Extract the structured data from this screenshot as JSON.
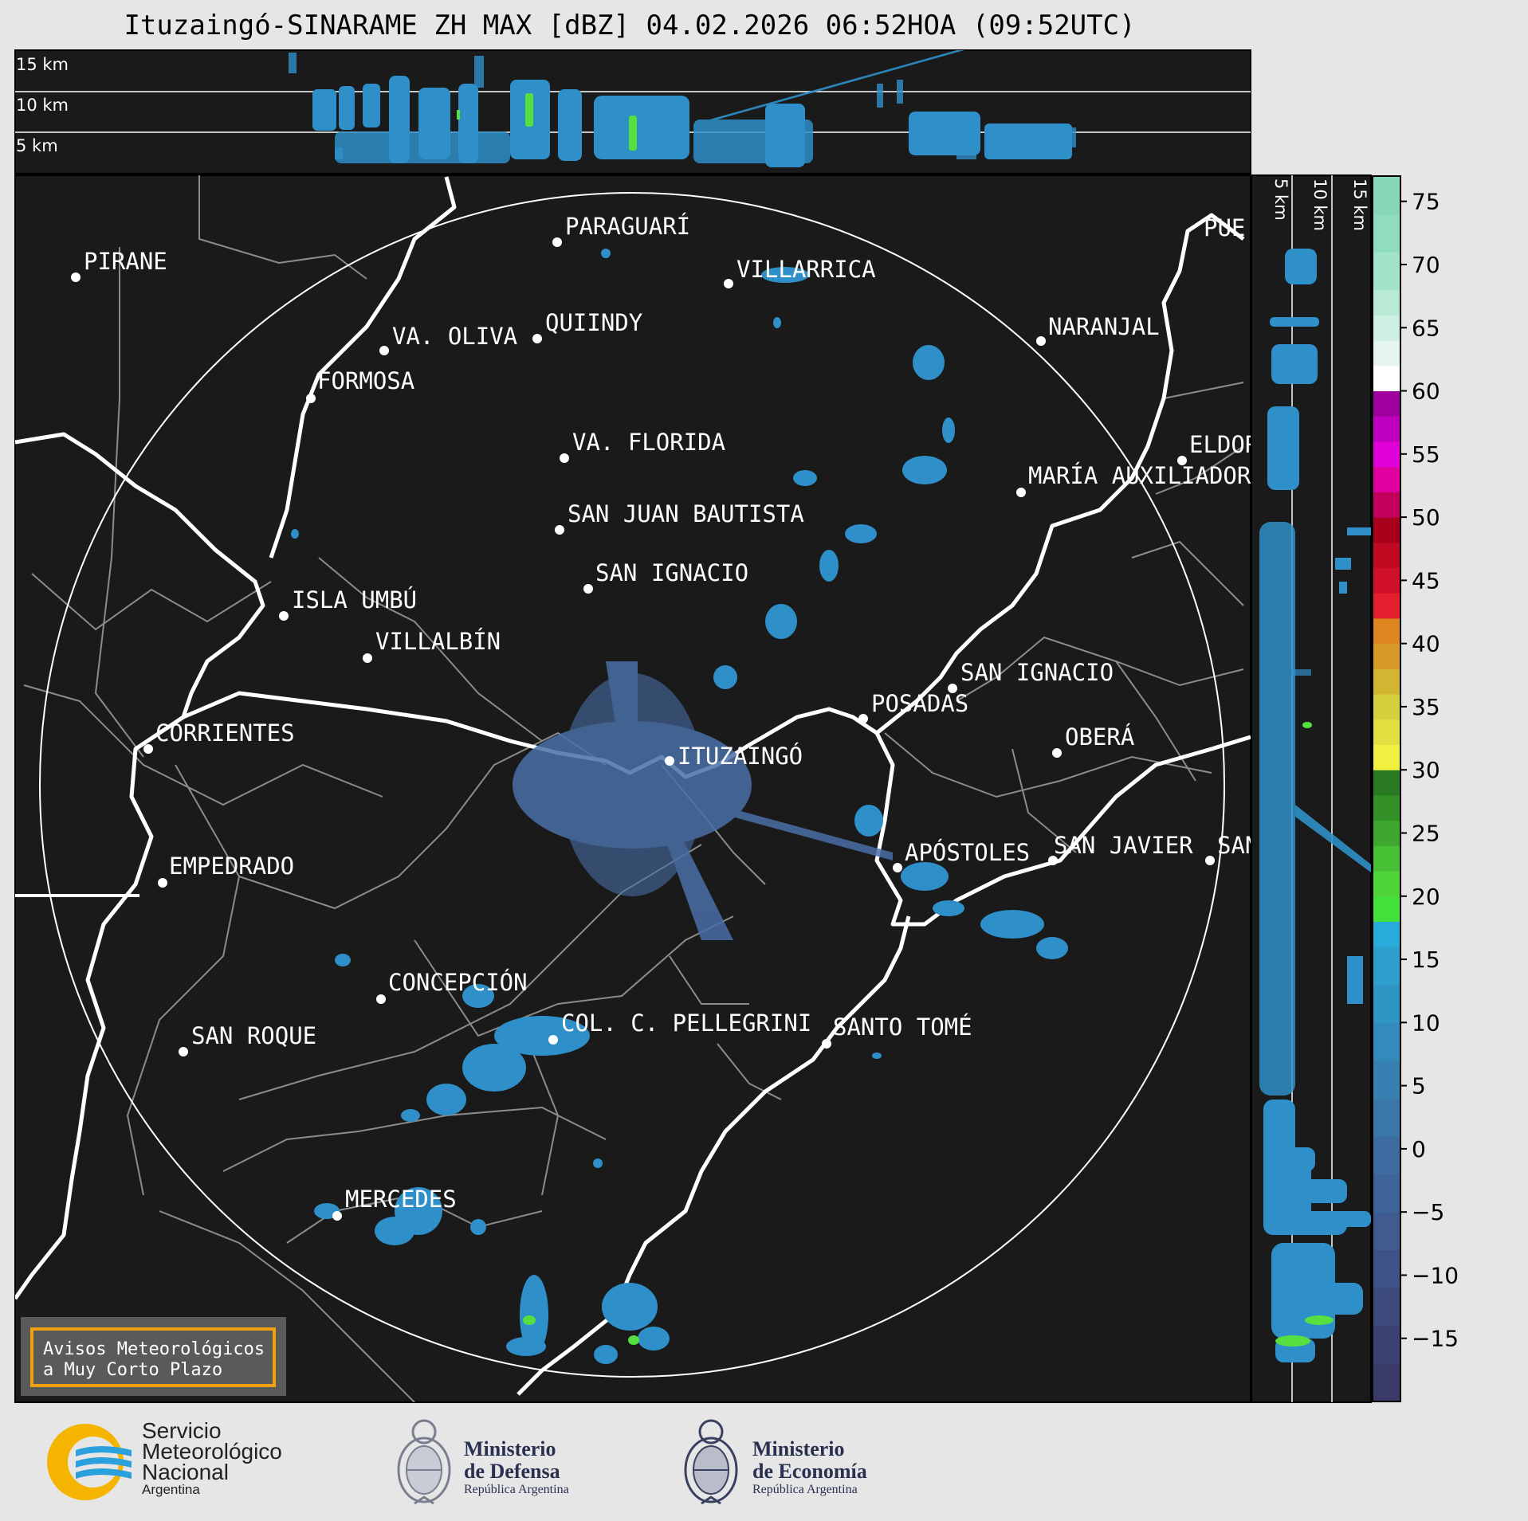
{
  "title": "Ituzaingó-SINARAME ZH MAX [dBZ] 04.02.2026 06:52HOA (09:52UTC)",
  "top_panel": {
    "altitude_labels": [
      "15 km",
      "10 km",
      "5 km"
    ]
  },
  "side_panel": {
    "altitude_labels": [
      "5 km",
      "10 km",
      "15 km"
    ]
  },
  "colorbar": {
    "unit": "dBZ",
    "ticks": [
      "75",
      "70",
      "65",
      "60",
      "55",
      "50",
      "45",
      "40",
      "35",
      "30",
      "25",
      "20",
      "15",
      "10",
      "5",
      "0",
      "−5",
      "−10",
      "−15"
    ],
    "tick_values": [
      75,
      70,
      65,
      60,
      55,
      50,
      45,
      40,
      35,
      30,
      25,
      20,
      15,
      10,
      5,
      0,
      -5,
      -10,
      -15
    ],
    "range": [
      -20,
      77
    ]
  },
  "cities": [
    {
      "name": "PARAGUARÍ"
    },
    {
      "name": "PIRANE"
    },
    {
      "name": "VILLARRICA"
    },
    {
      "name": "QUIINDY"
    },
    {
      "name": "VA. OLIVA"
    },
    {
      "name": "NARANJAL"
    },
    {
      "name": "FORMOSA"
    },
    {
      "name": "VA. FLORIDA"
    },
    {
      "name": "ELDOR"
    },
    {
      "name": "MARÍA AUXILIADOR"
    },
    {
      "name": "SAN JUAN BAUTISTA"
    },
    {
      "name": "SAN IGNACIO"
    },
    {
      "name": "ISLA UMBÚ"
    },
    {
      "name": "VILLALBÍN"
    },
    {
      "name": "SAN IGNACIO"
    },
    {
      "name": "POSADAS"
    },
    {
      "name": "CORRIENTES"
    },
    {
      "name": "ITUZAINGÓ"
    },
    {
      "name": "OBERÁ"
    },
    {
      "name": "EMPEDRADO"
    },
    {
      "name": "APÓSTOLES"
    },
    {
      "name": "SAN JAVIER"
    },
    {
      "name": "SAN"
    },
    {
      "name": "CONCEPCIÓN"
    },
    {
      "name": "COL. C. PELLEGRINI"
    },
    {
      "name": "SANTO TOMÉ"
    },
    {
      "name": "SAN ROQUE"
    },
    {
      "name": "MERCEDES"
    },
    {
      "name": "PUE"
    }
  ],
  "warning_box": {
    "line1": "Avisos Meteorológicos",
    "line2": "a Muy Corto Plazo",
    "border_color": "#f0a010"
  },
  "logos": {
    "smn": {
      "line1": "Servicio",
      "line2": "Meteorológico",
      "line3": "Nacional",
      "country": "Argentina"
    },
    "defensa": {
      "line1": "Ministerio",
      "line2": "de Defensa",
      "sub": "República Argentina"
    },
    "economia": {
      "line1": "Ministerio",
      "line2": "de Economía",
      "sub": "República Argentina"
    }
  },
  "colors": {
    "map_background": "#1a1a1a",
    "echo_blue": "#2f8fc8",
    "echo_green": "#55e040",
    "river": "#ffffff",
    "borders": "#8c8c8c",
    "smn_yellow": "#f5b400",
    "smn_blue": "#2aa0dc"
  }
}
